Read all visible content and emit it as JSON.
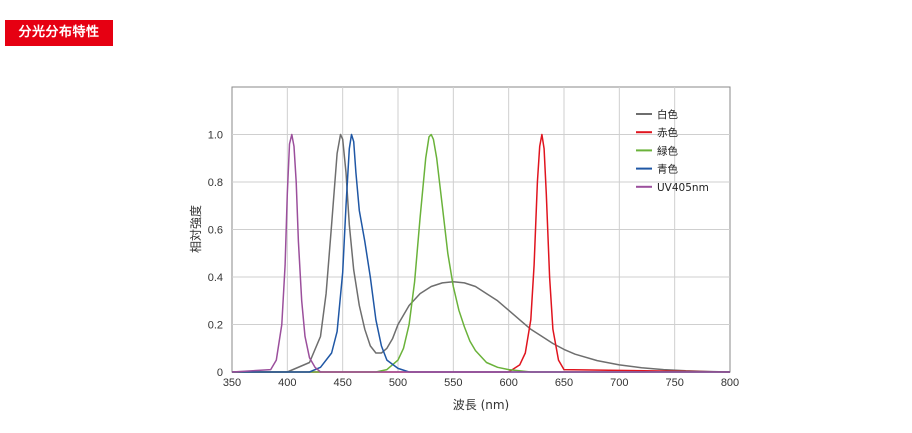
{
  "header": {
    "title": "分光分布特性",
    "accent": "#e60012"
  },
  "chart_data": {
    "type": "line",
    "title": "",
    "xlabel": "波長 (nm)",
    "ylabel": "相対強度",
    "xlim": [
      350,
      800
    ],
    "ylim": [
      0,
      1.2
    ],
    "xticks": [
      "350",
      "400",
      "450",
      "500",
      "550",
      "600",
      "650",
      "700",
      "750",
      "800"
    ],
    "yticks": [
      "0",
      "0.2",
      "0.4",
      "0.6",
      "0.8",
      "1.0"
    ],
    "grid": true,
    "legend_position": "top-right",
    "series": [
      {
        "name": "白色",
        "color": "#6e6e6e",
        "x": [
          350,
          400,
          420,
          430,
          435,
          440,
          445,
          448,
          450,
          453,
          456,
          460,
          465,
          470,
          475,
          480,
          485,
          490,
          495,
          500,
          510,
          520,
          530,
          540,
          550,
          560,
          570,
          580,
          590,
          600,
          610,
          620,
          630,
          640,
          650,
          660,
          680,
          700,
          720,
          740,
          760,
          780,
          800
        ],
        "y": [
          0,
          0,
          0.04,
          0.15,
          0.33,
          0.62,
          0.92,
          1.0,
          0.98,
          0.84,
          0.62,
          0.43,
          0.28,
          0.18,
          0.11,
          0.08,
          0.08,
          0.1,
          0.14,
          0.2,
          0.28,
          0.33,
          0.36,
          0.375,
          0.38,
          0.375,
          0.36,
          0.33,
          0.3,
          0.26,
          0.22,
          0.18,
          0.15,
          0.12,
          0.095,
          0.075,
          0.048,
          0.03,
          0.018,
          0.01,
          0.005,
          0.002,
          0
        ]
      },
      {
        "name": "赤色",
        "color": "#e0141e",
        "x": [
          350,
          600,
          610,
          615,
          620,
          623,
          626,
          628,
          630,
          632,
          634,
          637,
          640,
          645,
          650,
          800
        ],
        "y": [
          0,
          0,
          0.03,
          0.08,
          0.22,
          0.45,
          0.8,
          0.95,
          1.0,
          0.94,
          0.75,
          0.4,
          0.18,
          0.05,
          0.01,
          0
        ]
      },
      {
        "name": "緑色",
        "color": "#6ab23a",
        "x": [
          350,
          480,
          490,
          500,
          505,
          510,
          515,
          520,
          525,
          528,
          530,
          532,
          535,
          540,
          545,
          550,
          555,
          560,
          565,
          570,
          580,
          590,
          600,
          620,
          800
        ],
        "y": [
          0,
          0,
          0.01,
          0.05,
          0.1,
          0.2,
          0.38,
          0.65,
          0.9,
          0.99,
          1.0,
          0.98,
          0.9,
          0.7,
          0.5,
          0.36,
          0.26,
          0.19,
          0.13,
          0.09,
          0.04,
          0.02,
          0.01,
          0,
          0
        ]
      },
      {
        "name": "青色",
        "color": "#1f57a5",
        "x": [
          350,
          420,
          430,
          440,
          445,
          450,
          453,
          456,
          458,
          460,
          462,
          465,
          470,
          475,
          480,
          485,
          490,
          500,
          510,
          800
        ],
        "y": [
          0,
          0,
          0.02,
          0.08,
          0.17,
          0.42,
          0.7,
          0.94,
          1.0,
          0.97,
          0.84,
          0.68,
          0.55,
          0.4,
          0.22,
          0.11,
          0.05,
          0.015,
          0,
          0
        ]
      },
      {
        "name": "UV405nm",
        "color": "#9b4f9c",
        "x": [
          350,
          385,
          390,
          395,
          398,
          400,
          402,
          404,
          406,
          408,
          410,
          413,
          416,
          420,
          425,
          430,
          800
        ],
        "y": [
          0,
          0.01,
          0.05,
          0.2,
          0.45,
          0.75,
          0.96,
          1.0,
          0.95,
          0.8,
          0.55,
          0.3,
          0.15,
          0.06,
          0.02,
          0,
          0
        ]
      }
    ]
  }
}
